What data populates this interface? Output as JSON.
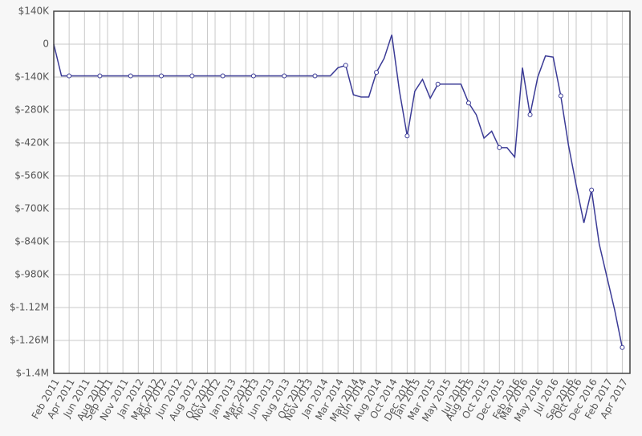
{
  "chart_data": {
    "type": "line",
    "x": [
      "Feb 2011",
      "Mar 2011",
      "Apr 2011",
      "May 2011",
      "Jun 2011",
      "Jul 2011",
      "Aug 2011",
      "Sep 2011",
      "Oct 2011",
      "Nov 2011",
      "Dec 2011",
      "Jan 2012",
      "Feb 2012",
      "Mar 2012",
      "Apr 2012",
      "May 2012",
      "Jun 2012",
      "Jul 2012",
      "Aug 2012",
      "Sep 2012",
      "Oct 2012",
      "Nov 2012",
      "Dec 2012",
      "Jan 2013",
      "Feb 2013",
      "Mar 2013",
      "Apr 2013",
      "May 2013",
      "Jun 2013",
      "Jul 2013",
      "Aug 2013",
      "Sep 2013",
      "Oct 2013",
      "Nov 2013",
      "Dec 2013",
      "Jan 2014",
      "Feb 2014",
      "Mar 2014",
      "Apr 2014",
      "May 2014",
      "Jun 2014",
      "Jul 2014",
      "Aug 2014",
      "Sep 2014",
      "Oct 2014",
      "Nov 2014",
      "Dec 2014",
      "Jan 2015",
      "Feb 2015",
      "Mar 2015",
      "Apr 2015",
      "May 2015",
      "Jun 2015",
      "Jul 2015",
      "Aug 2015",
      "Sep 2015",
      "Oct 2015",
      "Nov 2015",
      "Dec 2015",
      "Jan 2016",
      "Feb 2016",
      "Mar 2016",
      "Apr 2016",
      "May 2016",
      "Jun 2016",
      "Jul 2016",
      "Aug 2016",
      "Sep 2016",
      "Oct 2016",
      "Nov 2016",
      "Dec 2016",
      "Jan 2017",
      "Feb 2017",
      "Mar 2017",
      "Apr 2017"
    ],
    "series": [
      {
        "color": "#3b3b96",
        "values": [
          0,
          -135000,
          -135000,
          -135000,
          -135000,
          -135000,
          -135000,
          -135000,
          -135000,
          -135000,
          -135000,
          -135000,
          -135000,
          -135000,
          -135000,
          -135000,
          -135000,
          -135000,
          -135000,
          -135000,
          -135000,
          -135000,
          -135000,
          -135000,
          -135000,
          -135000,
          -135000,
          -135000,
          -135000,
          -135000,
          -135000,
          -135000,
          -135000,
          -135000,
          -135000,
          -135000,
          -135000,
          -100000,
          -90000,
          -215000,
          -225000,
          -225000,
          -120000,
          -60000,
          40000,
          -200000,
          -390000,
          -200000,
          -150000,
          -230000,
          -170000,
          -170000,
          -170000,
          -170000,
          -250000,
          -300000,
          -400000,
          -370000,
          -440000,
          -440000,
          -480000,
          -100000,
          -300000,
          -140000,
          -50000,
          -55000,
          -220000,
          -430000,
          -600000,
          -760000,
          -620000,
          -850000,
          -990000,
          -1130000,
          -1290000
        ]
      }
    ],
    "xlim": [
      "Feb 2011",
      "May 2017"
    ],
    "xticks": [
      "Feb 2011",
      "Apr 2011",
      "Jun 2011",
      "Aug 2011",
      "Sep 2011",
      "Nov 2011",
      "Jan 2012",
      "Mar 2012",
      "Apr 2012",
      "Jun 2012",
      "Aug 2012",
      "Oct 2012",
      "Nov 2012",
      "Jan 2013",
      "Mar 2013",
      "Apr 2013",
      "Jun 2013",
      "Aug 2013",
      "Oct 2013",
      "Nov 2013",
      "Jan 2014",
      "Mar 2014",
      "May 2014",
      "Jun 2014",
      "Aug 2014",
      "Oct 2014",
      "Dec 2014",
      "Jan 2015",
      "Mar 2015",
      "May 2015",
      "Jul 2015",
      "Aug 2015",
      "Oct 2015",
      "Dec 2015",
      "Feb 2016",
      "Mar 2016",
      "May 2016",
      "Jul 2016",
      "Sep 2016",
      "Oct 2016",
      "Dec 2016",
      "Feb 2017",
      "Apr 2017"
    ],
    "ylim": [
      -1400000,
      140000
    ],
    "yticks": [
      {
        "value": 140000,
        "label": "$140K"
      },
      0,
      {
        "value": -140000,
        "label": "$-140K"
      },
      {
        "value": -280000,
        "label": "$-280K"
      },
      {
        "value": -420000,
        "label": "$-420K"
      },
      {
        "value": -560000,
        "label": "$-560K"
      },
      {
        "value": -700000,
        "label": "$-700K"
      },
      {
        "value": -840000,
        "label": "$-840K"
      },
      {
        "value": -980000,
        "label": "$-980K"
      },
      {
        "value": -1120000,
        "label": "$-1.12M"
      },
      {
        "value": -1260000,
        "label": "$-1.26M"
      },
      {
        "value": -1400000,
        "label": "$-1.4M"
      }
    ],
    "grid": true
  }
}
